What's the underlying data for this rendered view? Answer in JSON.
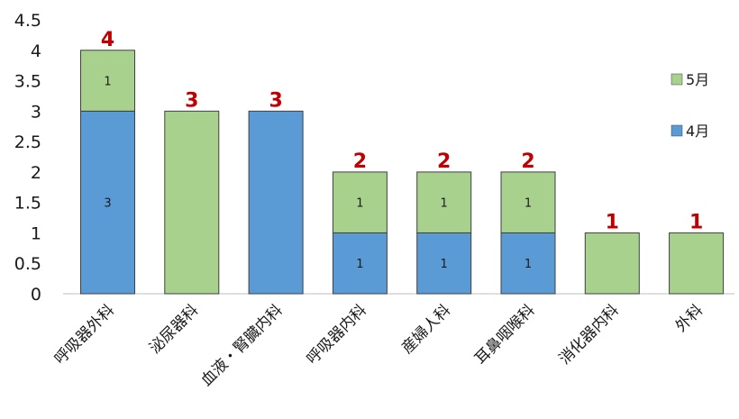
{
  "chart_data": {
    "type": "bar",
    "stacked": true,
    "categories": [
      "呼吸器外科",
      "泌尿器科",
      "血液・腎臓内科",
      "呼吸器内科",
      "産婦人科",
      "耳鼻咽喉科",
      "消化器内科",
      "外科"
    ],
    "series": [
      {
        "name": "4月",
        "color": "#5b9bd5",
        "values": [
          3,
          0,
          3,
          1,
          1,
          1,
          0,
          0
        ],
        "labels": [
          "3",
          "",
          "",
          "1",
          "1",
          "1",
          "",
          ""
        ]
      },
      {
        "name": "5月",
        "color": "#a9d18e",
        "values": [
          1,
          3,
          0,
          1,
          1,
          1,
          1,
          1
        ],
        "labels": [
          "1",
          "",
          "",
          "1",
          "1",
          "1",
          "",
          ""
        ]
      }
    ],
    "totals": [
      "4",
      "3",
      "3",
      "2",
      "2",
      "2",
      "1",
      "1"
    ],
    "yticks": [
      "0",
      "0.5",
      "1",
      "1.5",
      "2",
      "2.5",
      "3",
      "3.5",
      "4",
      "4.5"
    ],
    "ylim": [
      0,
      4.5
    ],
    "grid": false,
    "legend_position": "right",
    "total_color": "#c00000",
    "title": "",
    "xlabel": "",
    "ylabel": ""
  }
}
